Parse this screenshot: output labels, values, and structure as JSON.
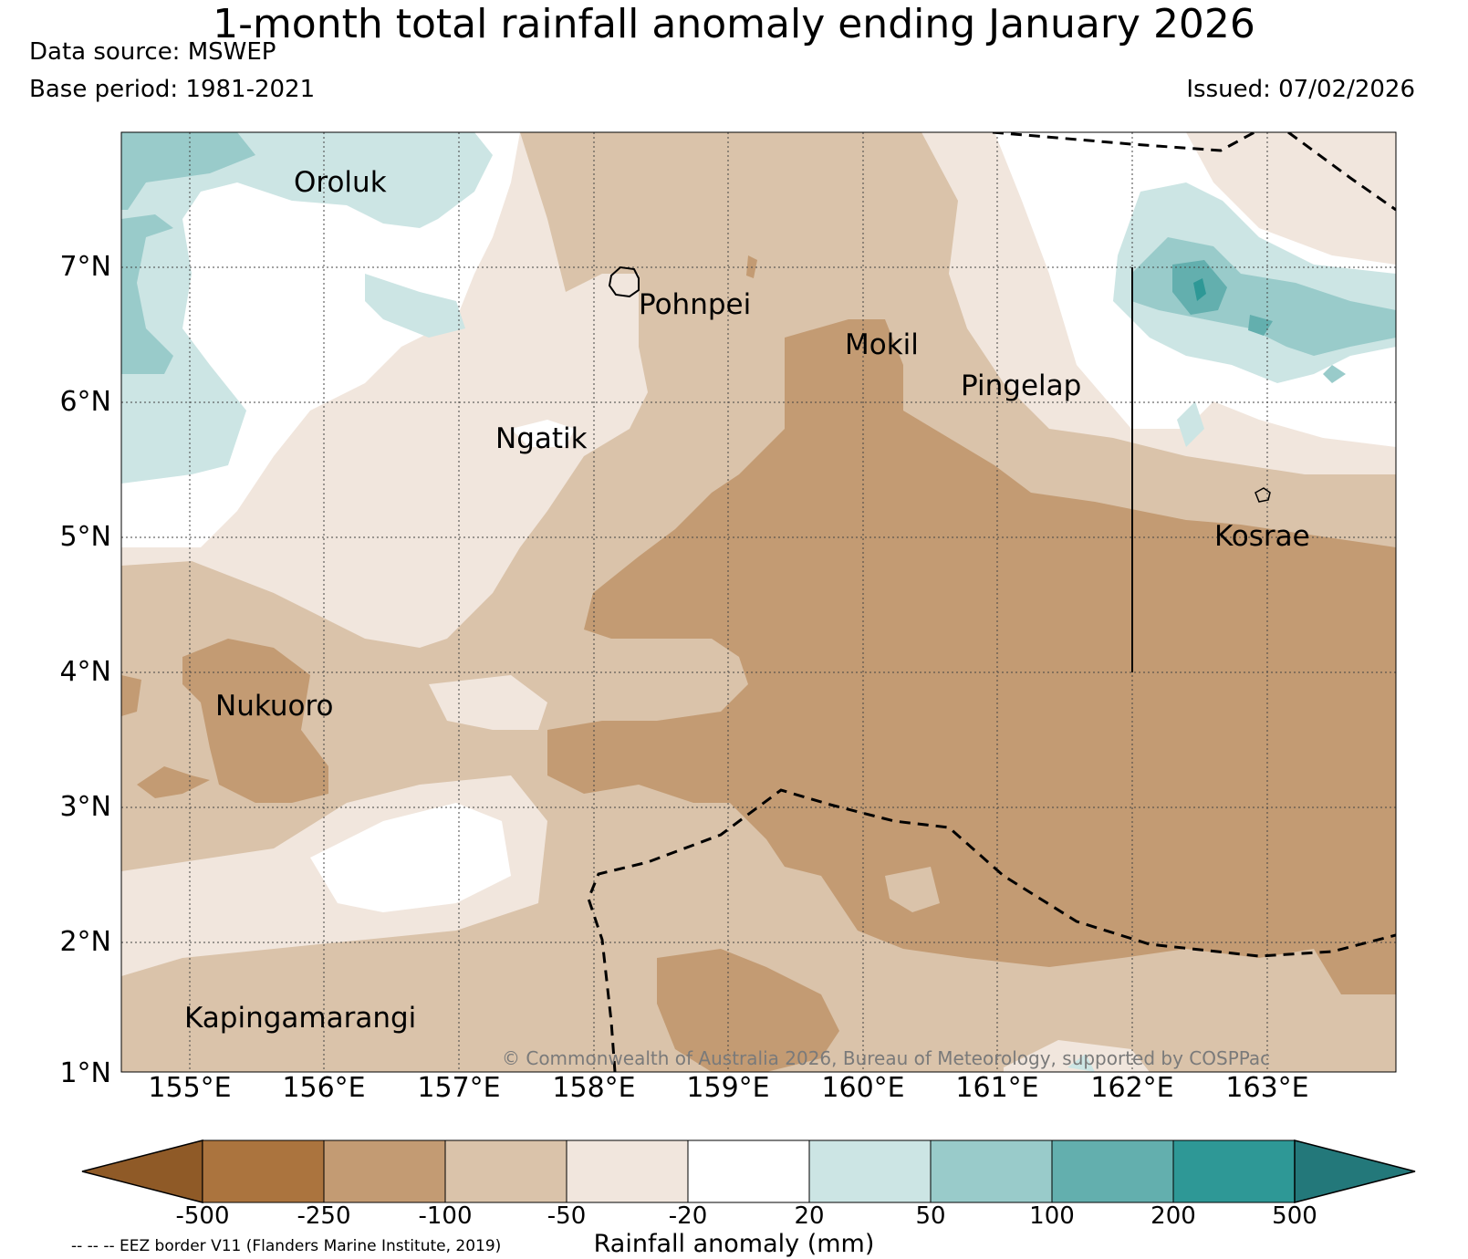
{
  "title": "1-month total rainfall anomaly ending January 2026",
  "data_source": "Data source: MSWEP",
  "base_period": "Base period: 1981-2021",
  "issued": "Issued: 07/02/2026",
  "copyright": "© Commonwealth of Australia 2026, Bureau of Meteorology, supported by COSPPac",
  "eez_note": "-- -- -- EEZ border V11 (Flanders Marine Institute, 2019)",
  "colorbar": {
    "title": "Rainfall anomaly (mm)",
    "ticks": [
      "-500",
      "-250",
      "-100",
      "-50",
      "-20",
      "20",
      "50",
      "100",
      "200",
      "500"
    ],
    "colors": [
      "#8f5a27",
      "#ab743e",
      "#c39b73",
      "#dac3aa",
      "#f1e6dd",
      "#ffffff",
      "#cce5e4",
      "#99cbca",
      "#63afae",
      "#2e9896",
      "#23787a"
    ]
  },
  "map": {
    "lat_labels": [
      "7°N",
      "6°N",
      "5°N",
      "4°N",
      "3°N",
      "2°N",
      "1°N"
    ],
    "lon_labels": [
      "155°E",
      "156°E",
      "157°E",
      "158°E",
      "159°E",
      "160°E",
      "161°E",
      "162°E",
      "163°E"
    ],
    "places": [
      {
        "name": "Oroluk"
      },
      {
        "name": "Pohnpei"
      },
      {
        "name": "Mokil"
      },
      {
        "name": "Pingelap"
      },
      {
        "name": "Ngatik"
      },
      {
        "name": "Kosrae"
      },
      {
        "name": "Nukuoro"
      },
      {
        "name": "Kapingamarangi"
      }
    ]
  }
}
